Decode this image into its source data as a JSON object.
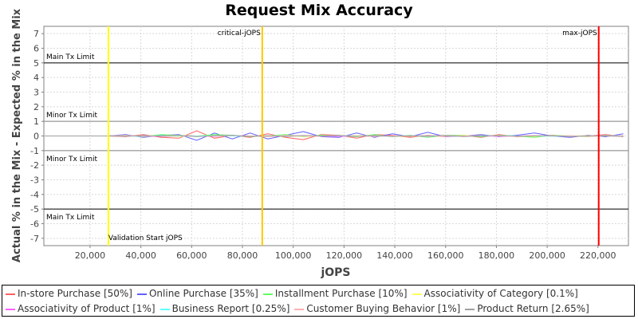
{
  "chart_data": {
    "type": "line",
    "title": "Request Mix Accuracy",
    "xlabel": "jOPS",
    "ylabel": "Actual % in the Mix - Expected % in the Mix",
    "xlim": [
      1800,
      232000
    ],
    "ylim": [
      -7.5,
      7.5
    ],
    "xticks": [
      20000,
      40000,
      60000,
      80000,
      100000,
      120000,
      140000,
      160000,
      180000,
      200000,
      220000
    ],
    "xtick_labels": [
      "20,000",
      "40,000",
      "60,000",
      "80,000",
      "100,000",
      "120,000",
      "140,000",
      "160,000",
      "180,000",
      "200,000",
      "220,000"
    ],
    "yticks": [
      -7,
      -6,
      -5,
      -4,
      -3,
      -2,
      -1,
      0,
      1,
      2,
      3,
      4,
      5,
      6,
      7
    ],
    "grid": true,
    "legend_position": "bottom",
    "thresholds": [
      {
        "label": "Main Tx Limit",
        "value": 5,
        "color": "#000000"
      },
      {
        "label": "Minor Tx Limit",
        "value": 1,
        "color": "#808080"
      },
      {
        "label": "Minor Tx Limit",
        "value": -1,
        "color": "#808080"
      },
      {
        "label": "Main Tx Limit",
        "value": -5,
        "color": "#000000"
      }
    ],
    "markers": [
      {
        "label": "Validation Start jOPS",
        "value": 27200,
        "color": "#ffff00"
      },
      {
        "label": "critical-jOPS",
        "value": 87800,
        "color": "#ffc800"
      },
      {
        "label": "max-jOPS",
        "value": 220300,
        "color": "#ff0000"
      }
    ],
    "x": [
      2000,
      27000,
      34000,
      41000,
      48000,
      55000,
      62000,
      69000,
      76000,
      83000,
      90000,
      97000,
      104000,
      111000,
      118000,
      125000,
      132000,
      139000,
      146000,
      153000,
      160000,
      167000,
      174000,
      181000,
      188000,
      195000,
      202000,
      209000,
      216000,
      223000,
      230000
    ],
    "series": [
      {
        "name": "In-store Purchase [50%]",
        "color": "#ff6060",
        "values": [
          0,
          0,
          -0.05,
          0.1,
          -0.1,
          -0.15,
          0.35,
          -0.15,
          0.05,
          -0.1,
          0.15,
          -0.1,
          -0.25,
          0.1,
          0.05,
          -0.15,
          0.1,
          0.05,
          -0.1,
          0.05,
          -0.05,
          0.05,
          -0.1,
          0.1,
          -0.05,
          0,
          0.05,
          -0.05,
          0,
          0.1,
          -0.05
        ]
      },
      {
        "name": "Online Purchase [35%]",
        "color": "#6060ff",
        "values": [
          0,
          0,
          0.1,
          -0.1,
          0.05,
          0.1,
          -0.3,
          0.2,
          -0.2,
          0.2,
          -0.2,
          0.05,
          0.3,
          -0.05,
          -0.1,
          0.2,
          -0.1,
          0.15,
          -0.05,
          0.25,
          -0.05,
          0,
          0.1,
          -0.05,
          0.05,
          0.2,
          0,
          -0.1,
          0.05,
          -0.05,
          0.15
        ]
      },
      {
        "name": "Installment Purchase [10%]",
        "color": "#60ff60",
        "values": [
          0,
          0,
          0.05,
          -0.05,
          0.1,
          0.05,
          0,
          0.1,
          0.05,
          -0.05,
          0,
          0.1,
          -0.05,
          0.05,
          0,
          -0.05,
          0.1,
          -0.05,
          0.05,
          -0.1,
          0.05,
          0.05,
          -0.05,
          0.05,
          0,
          -0.1,
          0.05,
          0,
          -0.05,
          0.05,
          0
        ]
      },
      {
        "name": "Associativity of Category [0.1%]",
        "color": "#ffff60",
        "values": [
          0,
          0,
          0,
          0.02,
          0,
          -0.02,
          0,
          0.02,
          0,
          0,
          0.02,
          0,
          -0.02,
          0,
          0,
          0.02,
          0,
          0,
          -0.02,
          0,
          0,
          0.02,
          0,
          0,
          0,
          -0.02,
          0,
          0,
          0.02,
          0,
          0
        ]
      },
      {
        "name": "Associativity of Product [1%]",
        "color": "#ff60ff",
        "values": [
          0,
          0,
          0.02,
          0,
          -0.03,
          0.02,
          0,
          -0.02,
          0.03,
          0,
          -0.02,
          0,
          0.02,
          0,
          -0.03,
          0,
          0.02,
          0,
          0,
          -0.02,
          0.02,
          0,
          0,
          -0.02,
          0,
          0.02,
          0,
          -0.02,
          0,
          0.02,
          0
        ]
      },
      {
        "name": "Business Report [0.25%]",
        "color": "#60ffff",
        "values": [
          0,
          0,
          0,
          -0.02,
          0.02,
          0,
          0,
          0.02,
          0,
          -0.02,
          0,
          0.02,
          0,
          0,
          0.02,
          0,
          -0.02,
          0,
          0.02,
          0,
          0,
          -0.02,
          0,
          0.02,
          0,
          0,
          -0.02,
          0,
          0,
          0,
          0.02
        ]
      },
      {
        "name": "Customer Buying Behavior [1%]",
        "color": "#ffb0b0",
        "values": [
          0,
          0,
          0.03,
          -0.02,
          0,
          0.05,
          -0.03,
          0,
          0.03,
          0,
          -0.05,
          0.03,
          0,
          -0.02,
          0.03,
          0,
          -0.03,
          0.02,
          0,
          0.03,
          -0.02,
          0,
          0.03,
          0,
          -0.02,
          0.03,
          0,
          0.02,
          -0.03,
          0,
          0.02
        ]
      },
      {
        "name": "Product Return [2.65%]",
        "color": "#a0a0a0",
        "values": [
          0,
          0,
          -0.03,
          0.05,
          -0.02,
          0.03,
          -0.05,
          0.02,
          0.05,
          -0.03,
          0.02,
          -0.05,
          0.03,
          0,
          0.05,
          -0.02,
          0.03,
          -0.03,
          0.02,
          0,
          0.05,
          -0.05,
          0.02,
          0.03,
          -0.02,
          0,
          0.03,
          -0.05,
          0.02,
          0,
          -0.03
        ]
      }
    ]
  }
}
